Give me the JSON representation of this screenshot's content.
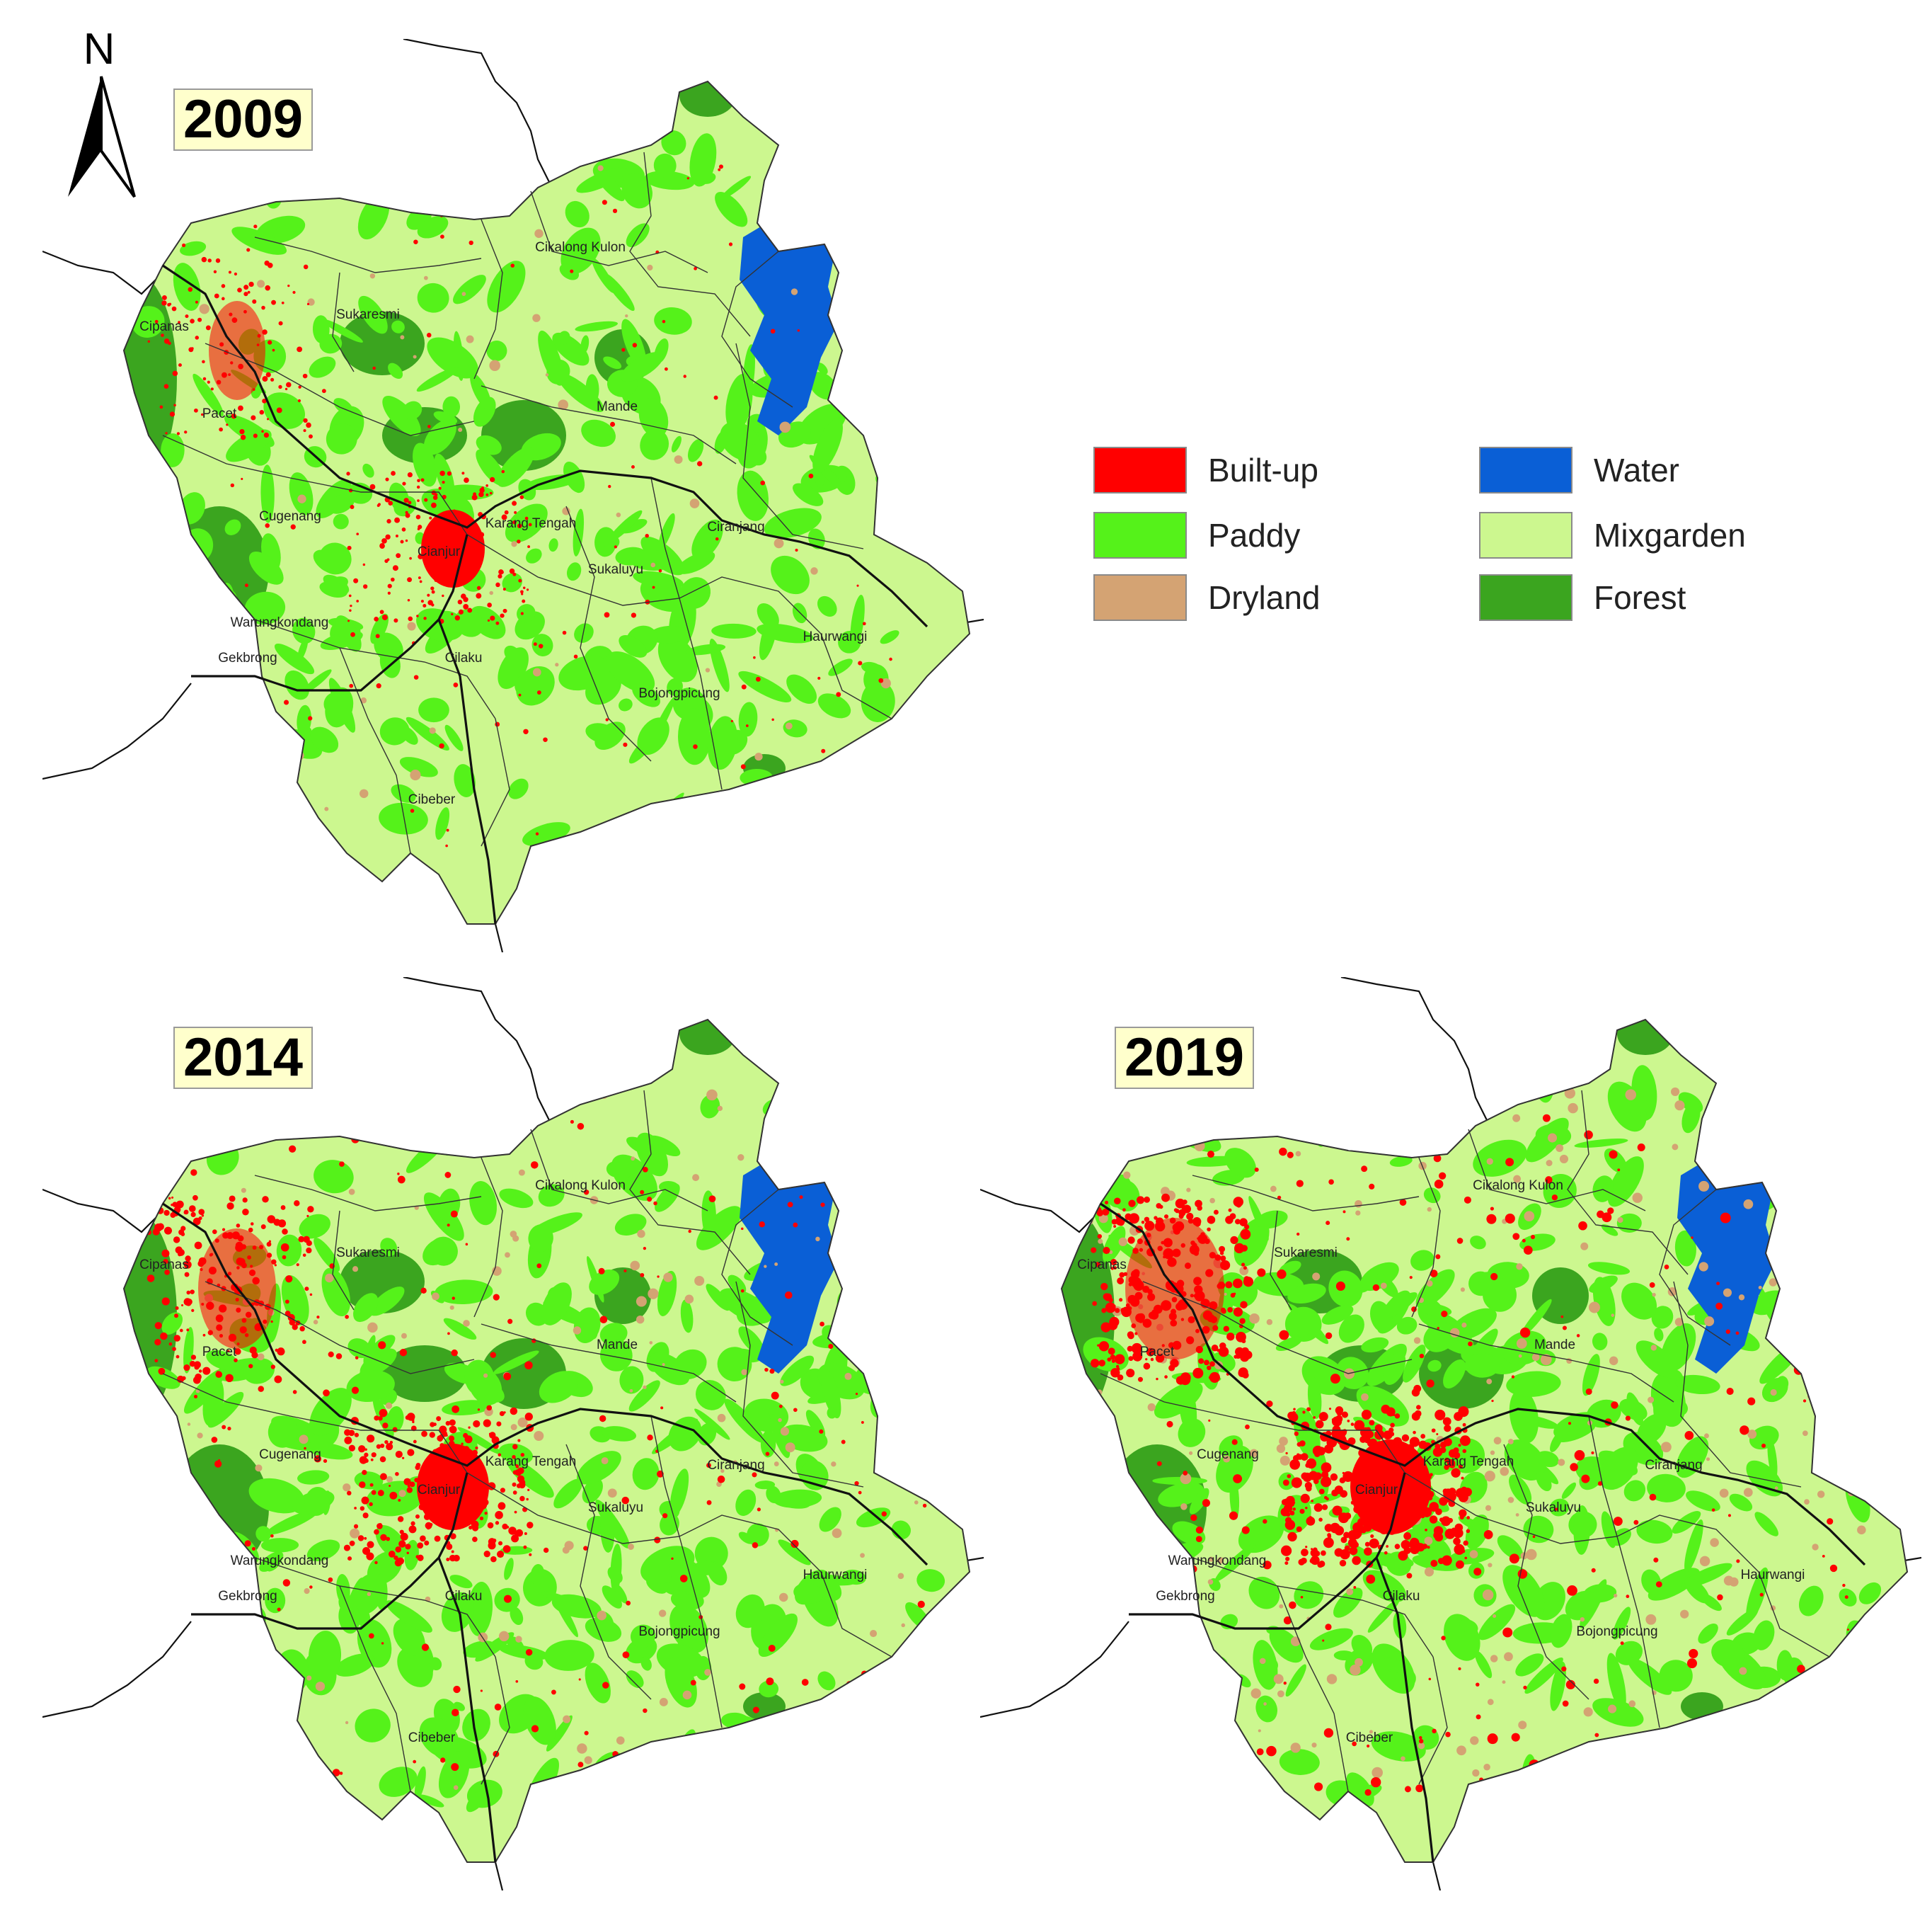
{
  "north_arrow": {
    "letter": "N"
  },
  "maps": [
    {
      "year": "2009"
    },
    {
      "year": "2014"
    },
    {
      "year": "2019"
    }
  ],
  "places": [
    "Cikalong Kulon",
    "Sukaresmi",
    "Cipanas",
    "Pacet",
    "Mande",
    "Cugenang",
    "Karang Tengah",
    "Cianjur",
    "Ciranjang",
    "Sukaluyu",
    "Warungkondang",
    "Gekbrong",
    "Cilaku",
    "Haurwangi",
    "Bojongpicung",
    "Cibeber"
  ],
  "legend": [
    {
      "label": "Built-up",
      "color": "#ff0000"
    },
    {
      "label": "Water",
      "color": "#0a5fd6"
    },
    {
      "label": "Paddy",
      "color": "#55f21a"
    },
    {
      "label": "Mixgarden",
      "color": "#ccf78f"
    },
    {
      "label": "Dryland",
      "color": "#d4a373"
    },
    {
      "label": "Forest",
      "color": "#3ba51f"
    }
  ],
  "colors": {
    "builtup": "#ff0000",
    "water": "#0a5fd6",
    "paddy": "#55f21a",
    "mixgarden": "#ccf78f",
    "dryland": "#d4a373",
    "forest": "#3ba51f",
    "boundary": "#333333",
    "road": "#111111"
  }
}
